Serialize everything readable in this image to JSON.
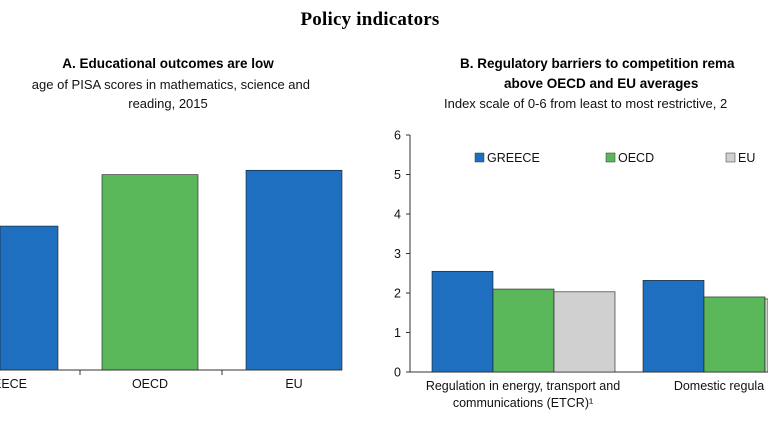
{
  "page_title": "Policy indicators",
  "chart_data": [
    {
      "type": "bar",
      "title": "A. Educational outcomes are low",
      "subtitle_lines": [
        "age of PISA scores in mathematics, science and",
        "reading, 2015"
      ],
      "categories": [
        "EECE",
        "OECD",
        "EU"
      ],
      "values": [
        458,
        493,
        496
      ],
      "bar_colors": [
        "#1f6fc0",
        "#5bb85a",
        "#1f6fc0"
      ],
      "ylim": [
        360,
        520
      ],
      "grid": false
    },
    {
      "type": "bar",
      "title_lines": [
        "B. Regulatory barriers to competition rema",
        "above OECD and EU averages"
      ],
      "subtitle": "Index scale of 0-6 from least to most restrictive, 2",
      "categories": [
        [
          "Regulation in energy, transport and",
          "communications (ETCR)¹"
        ],
        [
          "Domestic regula"
        ]
      ],
      "series": [
        {
          "name": "GREECE",
          "values": [
            2.55,
            2.32
          ],
          "color": "#1f6fc0"
        },
        {
          "name": "OECD",
          "values": [
            2.1,
            1.9
          ],
          "color": "#5bb85a"
        },
        {
          "name": "EU",
          "values": [
            2.03,
            1.85
          ],
          "color": "#d0d0d0"
        }
      ],
      "yticks": [
        "0",
        "1",
        "2",
        "3",
        "4",
        "5",
        "6"
      ],
      "ylim": [
        0,
        6
      ],
      "grid": false,
      "legend_position": "top"
    }
  ]
}
